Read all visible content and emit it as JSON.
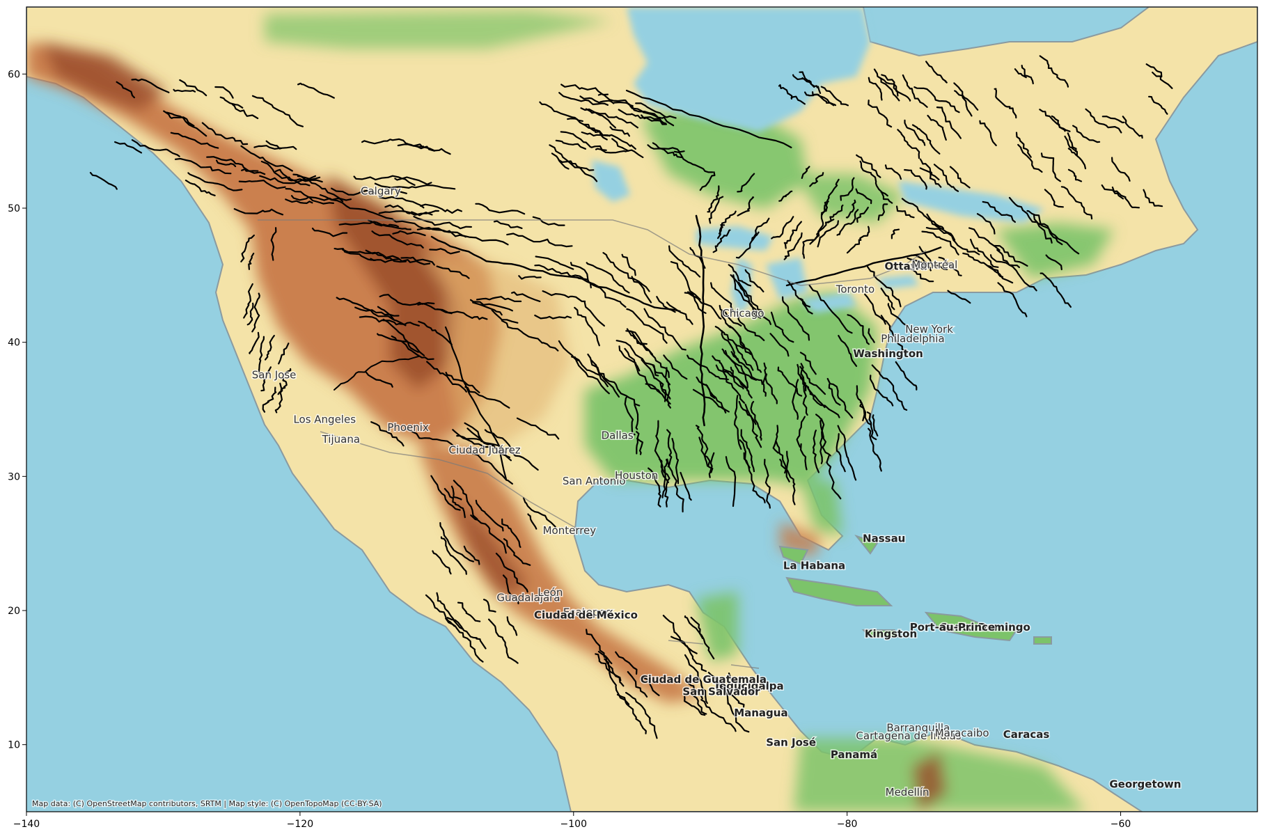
{
  "map": {
    "extent": {
      "lon_min": -140,
      "lon_max": -50,
      "lat_min": 5,
      "lat_max": 65
    },
    "x_ticks": [
      -140,
      -120,
      -100,
      -80,
      -60
    ],
    "y_ticks": [
      10,
      20,
      30,
      40,
      50,
      60
    ],
    "attribution": "Map data: (C) OpenStreetMap contributors, SRTM | Map style: (C) OpenTopoMap (CC-BY-SA)",
    "colors": {
      "ocean": "#95d0e1",
      "lowland": "#7cc36a",
      "plains": "#f4e3a8",
      "highland": "#c87a48",
      "mountain": "#9a4e2c",
      "river": "#000000",
      "border": "#7a7a7a"
    },
    "places": [
      {
        "name": "Calgary",
        "lon": -114.1,
        "lat": 51.0,
        "capital": false
      },
      {
        "name": "San Jose",
        "lon": -121.9,
        "lat": 37.3,
        "capital": false
      },
      {
        "name": "Los Angeles",
        "lon": -118.2,
        "lat": 34.0,
        "capital": false
      },
      {
        "name": "Tijuana",
        "lon": -117.0,
        "lat": 32.5,
        "capital": false
      },
      {
        "name": "Phoenix",
        "lon": -112.1,
        "lat": 33.4,
        "capital": false
      },
      {
        "name": "Ciudad Juárez",
        "lon": -106.5,
        "lat": 31.7,
        "capital": false
      },
      {
        "name": "San Antonio",
        "lon": -98.5,
        "lat": 29.4,
        "capital": false
      },
      {
        "name": "Dallas",
        "lon": -96.8,
        "lat": 32.8,
        "capital": false
      },
      {
        "name": "Houston",
        "lon": -95.4,
        "lat": 29.8,
        "capital": false
      },
      {
        "name": "Monterrey",
        "lon": -100.3,
        "lat": 25.7,
        "capital": false
      },
      {
        "name": "Chicago",
        "lon": -87.6,
        "lat": 41.9,
        "capital": false
      },
      {
        "name": "Toronto",
        "lon": -79.4,
        "lat": 43.7,
        "capital": false
      },
      {
        "name": "Ottawa",
        "lon": -75.7,
        "lat": 45.4,
        "capital": true
      },
      {
        "name": "Montréal",
        "lon": -73.6,
        "lat": 45.5,
        "capital": false
      },
      {
        "name": "New York",
        "lon": -74.0,
        "lat": 40.7,
        "capital": false
      },
      {
        "name": "Philadelphia",
        "lon": -75.2,
        "lat": 40.0,
        "capital": false
      },
      {
        "name": "Washington",
        "lon": -77.0,
        "lat": 38.9,
        "capital": true
      },
      {
        "name": "Nassau",
        "lon": -77.3,
        "lat": 25.1,
        "capital": true
      },
      {
        "name": "La Habana",
        "lon": -82.4,
        "lat": 23.1,
        "capital": true
      },
      {
        "name": "Guadalajara",
        "lon": -103.3,
        "lat": 20.7,
        "capital": false
      },
      {
        "name": "León",
        "lon": -101.7,
        "lat": 21.1,
        "capital": false
      },
      {
        "name": "Ecatepec",
        "lon": -99.0,
        "lat": 19.6,
        "capital": false
      },
      {
        "name": "Ciudad de México",
        "lon": -99.1,
        "lat": 19.4,
        "capital": true
      },
      {
        "name": "Santo Domingo",
        "lon": -69.9,
        "lat": 18.5,
        "capital": true
      },
      {
        "name": "Port-au-Prince",
        "lon": -72.3,
        "lat": 18.5,
        "capital": true
      },
      {
        "name": "Kingston",
        "lon": -76.8,
        "lat": 18.0,
        "capital": true
      },
      {
        "name": "Tegucigalpa",
        "lon": -87.2,
        "lat": 14.1,
        "capital": true
      },
      {
        "name": "Ciudad de Guatemala",
        "lon": -90.5,
        "lat": 14.6,
        "capital": true
      },
      {
        "name": "San Salvador",
        "lon": -89.2,
        "lat": 13.7,
        "capital": true
      },
      {
        "name": "Managua",
        "lon": -86.3,
        "lat": 12.1,
        "capital": true
      },
      {
        "name": "Barranquilla",
        "lon": -74.8,
        "lat": 11.0,
        "capital": false
      },
      {
        "name": "Cartagena de Indias",
        "lon": -75.5,
        "lat": 10.4,
        "capital": false
      },
      {
        "name": "Maracaibo",
        "lon": -71.6,
        "lat": 10.6,
        "capital": false
      },
      {
        "name": "Caracas",
        "lon": -66.9,
        "lat": 10.5,
        "capital": true
      },
      {
        "name": "San José",
        "lon": -84.1,
        "lat": 9.9,
        "capital": true
      },
      {
        "name": "Panamá",
        "lon": -79.5,
        "lat": 9.0,
        "capital": true
      },
      {
        "name": "Medellín",
        "lon": -75.6,
        "lat": 6.2,
        "capital": false
      },
      {
        "name": "Georgetown",
        "lon": -58.2,
        "lat": 6.8,
        "capital": true
      }
    ]
  }
}
